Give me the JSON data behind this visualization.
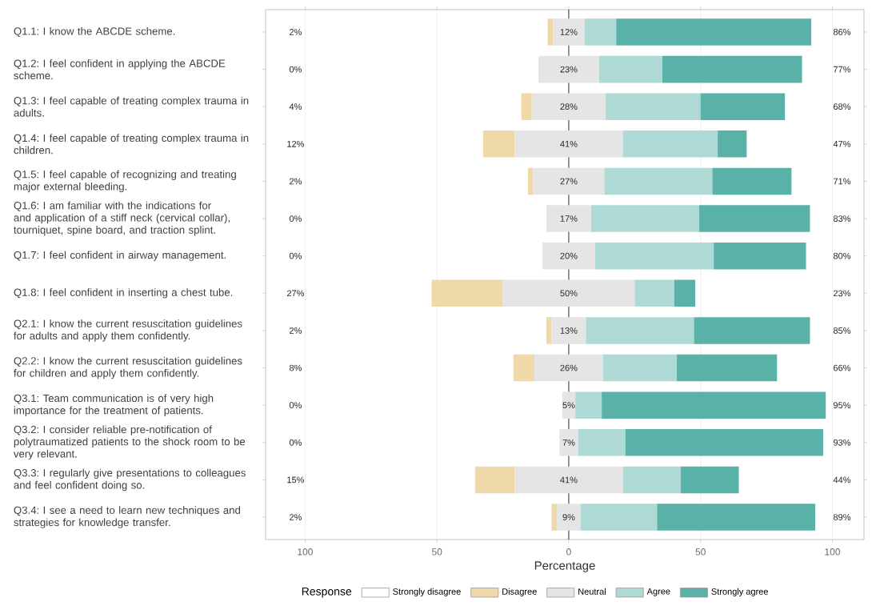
{
  "chart_data": {
    "type": "bar",
    "orientation": "horizontal",
    "xlabel": "Percentage",
    "legend_title": "Response",
    "legend": "bottom",
    "grid": "x",
    "categories": [
      "Q1.1: I know the ABCDE scheme.",
      "Q1.2: I feel confident in applying the ABCDE scheme.",
      "Q1.3: I feel capable of treating complex trauma in adults.",
      "Q1.4: I feel capable of treating complex trauma in children.",
      "Q1.5: I feel capable of recognizing and treating major external bleeding.",
      "Q1.6: I am familiar with the indications for and application of a stiff neck (cervical collar), tourniquet, spine board, and traction splint.",
      "Q1.7: I feel confident in airway management.",
      "Q1.8: I feel confident in inserting a chest tube.",
      "Q2.1: I know the current resuscitation guidelines for adults and apply them confidently.",
      "Q2.2: I know the current resuscitation guidelines for children and apply them confidently.",
      "Q3.1: Team communication is of very high importance for the treatment of patients.",
      "Q3.2: I consider reliable pre-notification of polytraumatized patients to the shock room to be very relevant.",
      "Q3.3: I regularly give presentations to colleagues and feel confident doing so.",
      "Q3.4: I see a need to learn new techniques and strategies for knowledge transfer."
    ],
    "xlim": [
      -115,
      112
    ],
    "xticks": [
      {
        "value": -100,
        "label": "100"
      },
      {
        "value": -50,
        "label": "50"
      },
      0,
      50,
      100
    ],
    "ref_lines": [
      {
        "axis": "x",
        "value": 0,
        "color": "#333333"
      }
    ],
    "series": [
      {
        "name": "Strongly disagree",
        "color": "#ffffff",
        "values": [
          0,
          0,
          0,
          0,
          0,
          0,
          0,
          0,
          0,
          0,
          0,
          0,
          0,
          0
        ]
      },
      {
        "name": "Disagree",
        "color": "#efd9a9",
        "values": [
          2,
          0,
          4,
          12,
          2,
          0,
          0,
          27,
          2,
          8,
          0,
          0,
          15,
          2
        ],
        "base": [
          -8,
          null,
          -18,
          -32.5,
          -15.5,
          null,
          null,
          -52,
          -8.5,
          -21,
          null,
          null,
          -35.5,
          -6.5
        ]
      },
      {
        "name": "Neutral",
        "color": "#e5e5e5",
        "values": [
          12,
          23,
          28,
          41,
          27,
          17,
          20,
          50,
          13,
          26,
          5,
          7,
          41,
          9
        ],
        "base": [
          -6,
          -11.5,
          -14,
          -20.5,
          -13.5,
          -8.5,
          -10,
          -25,
          -6.5,
          -13,
          -2.5,
          -3.5,
          -20.5,
          -4.5
        ],
        "value_labels": [
          "12%",
          "23%",
          "28%",
          "41%",
          "27%",
          "17%",
          "20%",
          "50%",
          "13%",
          "26%",
          "5%",
          "7%",
          "41%",
          "9%"
        ]
      },
      {
        "name": "Agree",
        "color": "#aed9d5",
        "values": [
          12,
          24,
          36,
          36,
          41,
          41,
          45,
          15,
          41,
          28,
          10,
          18,
          22,
          29
        ],
        "base": [
          6,
          11.5,
          14,
          20.5,
          13.5,
          8.5,
          10,
          25,
          6.5,
          13,
          2.5,
          3.5,
          20.5,
          4.5
        ]
      },
      {
        "name": "Strongly agree",
        "color": "#5ab1a8",
        "values": [
          74,
          53,
          32,
          11,
          30,
          42,
          35,
          8,
          44,
          38,
          85,
          75,
          22,
          60
        ],
        "base": [
          18,
          35.5,
          50,
          56.5,
          54.5,
          49.5,
          55,
          40,
          47.5,
          41,
          12.5,
          21.5,
          42.5,
          33.5
        ]
      }
    ],
    "annotations": [
      "2%",
      "0%",
      "4%",
      "12%",
      "2%",
      "0%",
      "0%",
      "27%",
      "2%",
      "8%",
      "0%",
      "0%",
      "15%",
      "2%",
      "86%",
      "77%",
      "68%",
      "47%",
      "71%",
      "83%",
      "80%",
      "23%",
      "85%",
      "66%",
      "95%",
      "93%",
      "44%",
      "89%"
    ]
  }
}
